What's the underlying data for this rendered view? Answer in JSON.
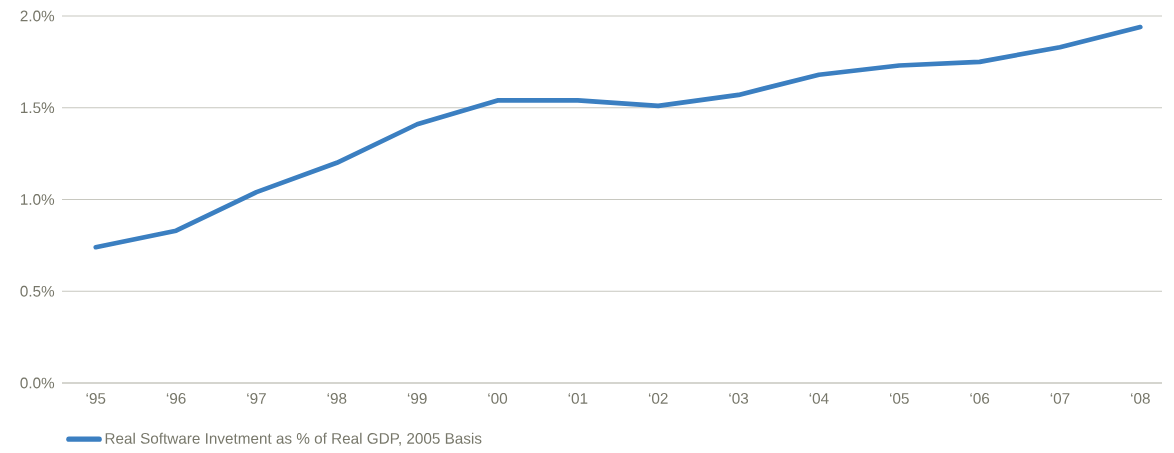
{
  "chart_data": {
    "type": "line",
    "categories": [
      "‘95",
      "‘96",
      "‘97",
      "‘98",
      "‘99",
      "‘00",
      "‘01",
      "‘02",
      "‘03",
      "‘04",
      "‘05",
      "‘06",
      "‘07",
      "‘08"
    ],
    "series": [
      {
        "name": "Real Software Invetment as % of Real GDP, 2005 Basis",
        "color": "#3b7fc1",
        "values": [
          0.74,
          0.83,
          1.04,
          1.2,
          1.41,
          1.54,
          1.54,
          1.51,
          1.57,
          1.68,
          1.73,
          1.75,
          1.83,
          1.94
        ]
      }
    ],
    "ylim": [
      0,
      2
    ],
    "yticks": [
      {
        "value": 0,
        "label": "0.0%"
      },
      {
        "value": 0.5,
        "label": "0.5%"
      },
      {
        "value": 1,
        "label": "1.0%"
      },
      {
        "value": 1.5,
        "label": "1.5%"
      },
      {
        "value": 2,
        "label": "2.0%"
      }
    ],
    "grid": "y",
    "legend": "bottom left",
    "marker": "none",
    "line_style": "solid"
  }
}
